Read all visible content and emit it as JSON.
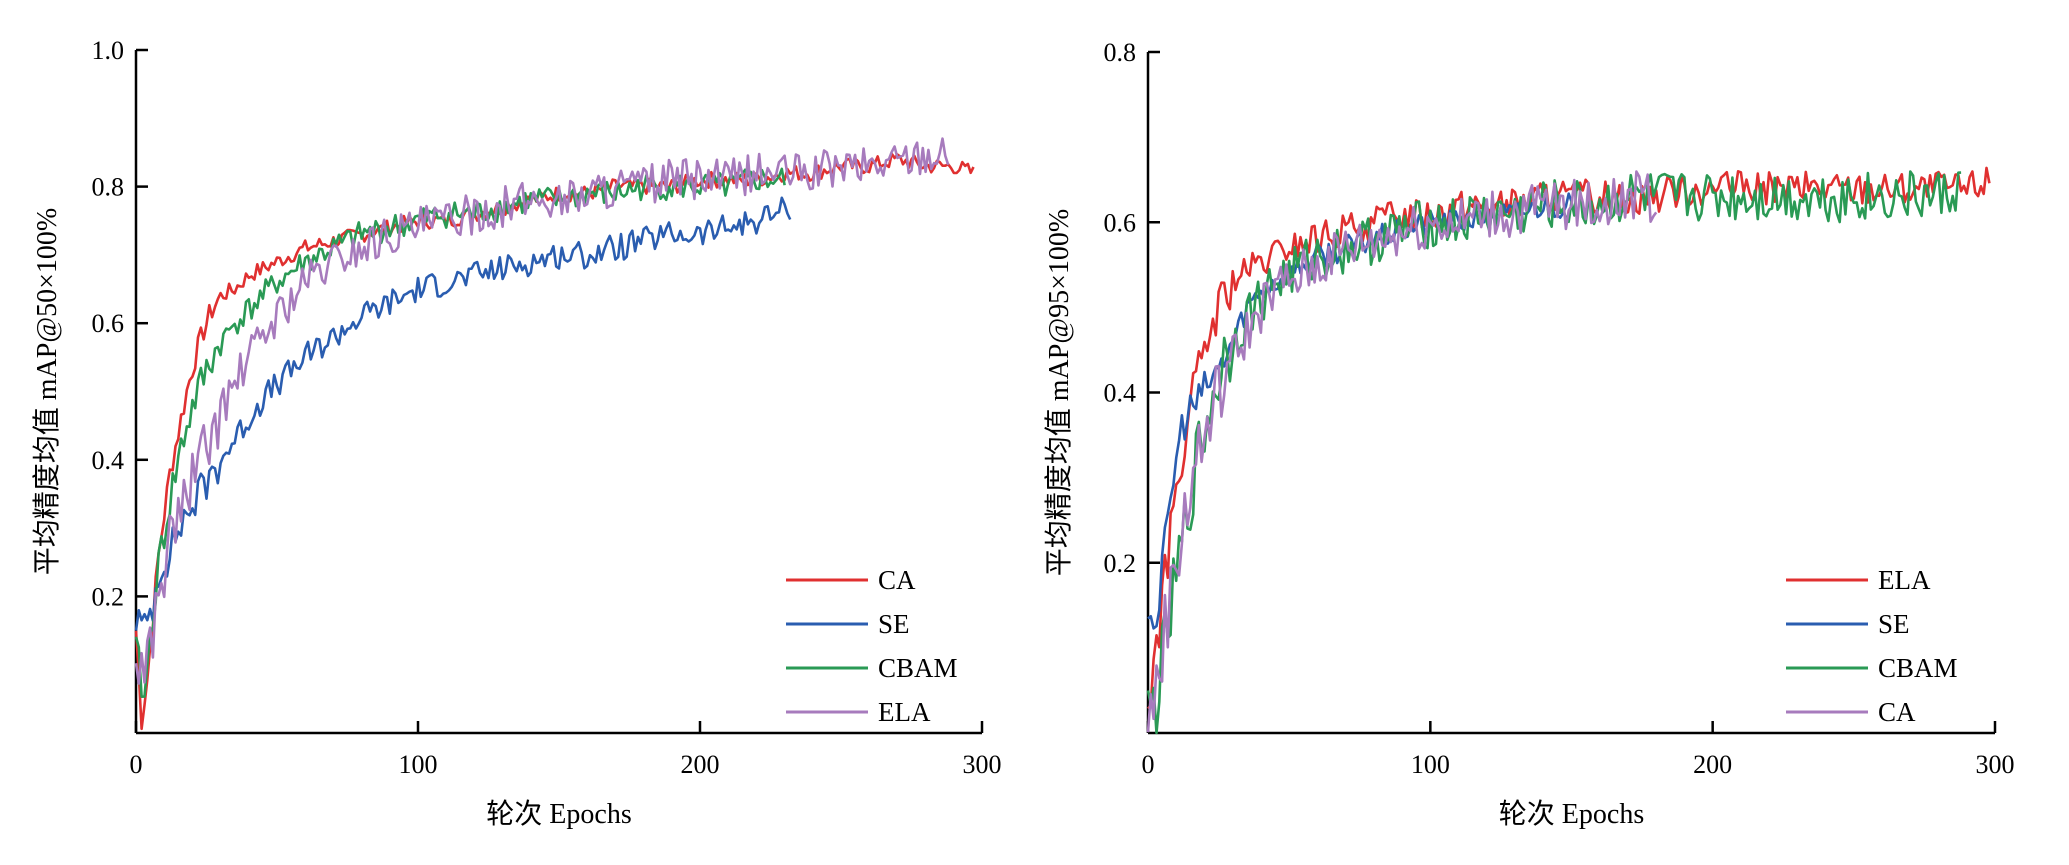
{
  "chart_data": [
    {
      "type": "line",
      "xlabel": "轮次 Epochs",
      "ylabel": "平均精度均值 mAP@50×100%",
      "xlim": [
        0,
        300
      ],
      "ylim": [
        0,
        1.0
      ],
      "xticks": [
        "0",
        "100",
        "200",
        "300"
      ],
      "yticks": [
        "0.2",
        "0.4",
        "0.6",
        "0.8",
        "1.0"
      ],
      "xtick_values": [
        0,
        100,
        200,
        300
      ],
      "ytick_values": [
        0.2,
        0.4,
        0.6,
        0.8,
        1.0
      ],
      "grid": false,
      "legend_position": "bottom-right",
      "series": [
        {
          "name": "CA",
          "color": "#e03030",
          "x": [
            0,
            2,
            4,
            6,
            8,
            10,
            12,
            15,
            18,
            21,
            24,
            27,
            30,
            35,
            40,
            45,
            50,
            60,
            70,
            80,
            90,
            100,
            110,
            120,
            130,
            140,
            150,
            160,
            170,
            180,
            190,
            200,
            210,
            220,
            230,
            240,
            250,
            260,
            270,
            280,
            290,
            297
          ],
          "y": [
            0.15,
            0.02,
            0.08,
            0.17,
            0.26,
            0.32,
            0.38,
            0.44,
            0.5,
            0.55,
            0.59,
            0.62,
            0.64,
            0.65,
            0.67,
            0.68,
            0.69,
            0.71,
            0.72,
            0.73,
            0.74,
            0.75,
            0.75,
            0.76,
            0.77,
            0.78,
            0.79,
            0.79,
            0.8,
            0.8,
            0.8,
            0.81,
            0.81,
            0.81,
            0.82,
            0.82,
            0.83,
            0.83,
            0.84,
            0.83,
            0.83,
            0.82
          ]
        },
        {
          "name": "SE",
          "color": "#2a5db0",
          "x": [
            0,
            3,
            6,
            9,
            12,
            15,
            18,
            21,
            24,
            27,
            30,
            35,
            40,
            45,
            50,
            55,
            60,
            70,
            80,
            90,
            100,
            110,
            120,
            130,
            140,
            150,
            160,
            170,
            180,
            190,
            200,
            210,
            220,
            232
          ],
          "y": [
            0.17,
            0.15,
            0.19,
            0.25,
            0.26,
            0.3,
            0.32,
            0.34,
            0.36,
            0.38,
            0.4,
            0.43,
            0.46,
            0.49,
            0.51,
            0.53,
            0.55,
            0.58,
            0.61,
            0.63,
            0.65,
            0.66,
            0.67,
            0.68,
            0.69,
            0.7,
            0.7,
            0.71,
            0.72,
            0.73,
            0.73,
            0.74,
            0.75,
            0.77
          ]
        },
        {
          "name": "CBAM",
          "color": "#2a9a55",
          "x": [
            0,
            3,
            6,
            9,
            12,
            15,
            18,
            21,
            24,
            27,
            30,
            35,
            40,
            45,
            50,
            60,
            70,
            80,
            90,
            100,
            110,
            120,
            130,
            140,
            150,
            160,
            170,
            180,
            190,
            200,
            210,
            220,
            230
          ],
          "y": [
            0.12,
            0.05,
            0.18,
            0.27,
            0.34,
            0.4,
            0.45,
            0.49,
            0.52,
            0.55,
            0.57,
            0.6,
            0.62,
            0.64,
            0.66,
            0.69,
            0.71,
            0.73,
            0.74,
            0.75,
            0.76,
            0.76,
            0.77,
            0.78,
            0.78,
            0.79,
            0.79,
            0.8,
            0.8,
            0.8,
            0.8,
            0.81,
            0.81
          ]
        },
        {
          "name": "ELA",
          "color": "#a77bbd",
          "x": [
            0,
            3,
            6,
            9,
            12,
            15,
            18,
            21,
            24,
            27,
            30,
            35,
            40,
            45,
            50,
            60,
            70,
            80,
            90,
            100,
            110,
            120,
            130,
            140,
            150,
            160,
            170,
            180,
            190,
            200,
            210,
            220,
            230,
            240,
            250,
            260,
            270,
            280,
            288
          ],
          "y": [
            0.1,
            0.1,
            0.15,
            0.22,
            0.28,
            0.32,
            0.35,
            0.38,
            0.41,
            0.44,
            0.47,
            0.51,
            0.55,
            0.58,
            0.61,
            0.66,
            0.69,
            0.71,
            0.73,
            0.74,
            0.75,
            0.76,
            0.77,
            0.78,
            0.78,
            0.79,
            0.8,
            0.8,
            0.81,
            0.81,
            0.81,
            0.82,
            0.82,
            0.82,
            0.83,
            0.83,
            0.84,
            0.85,
            0.85
          ]
        }
      ]
    },
    {
      "type": "line",
      "xlabel": "轮次 Epochs",
      "ylabel": "平均精度均值 mAP@95×100%",
      "xlim": [
        0,
        300
      ],
      "ylim": [
        0,
        0.8
      ],
      "xticks": [
        "0",
        "100",
        "200",
        "300"
      ],
      "yticks": [
        "0.2",
        "0.4",
        "0.6",
        "0.8"
      ],
      "xtick_values": [
        0,
        100,
        200,
        300
      ],
      "ytick_values": [
        0.2,
        0.4,
        0.6,
        0.8
      ],
      "grid": false,
      "legend_position": "bottom-right",
      "series": [
        {
          "name": "ELA",
          "color": "#e03030",
          "x": [
            0,
            3,
            6,
            9,
            12,
            15,
            18,
            21,
            24,
            27,
            30,
            35,
            40,
            45,
            50,
            60,
            70,
            80,
            90,
            100,
            110,
            120,
            130,
            140,
            150,
            160,
            170,
            180,
            190,
            200,
            210,
            220,
            230,
            240,
            250,
            260,
            270,
            280,
            290,
            298
          ],
          "y": [
            0.03,
            0.1,
            0.18,
            0.26,
            0.33,
            0.38,
            0.42,
            0.46,
            0.49,
            0.51,
            0.53,
            0.54,
            0.55,
            0.56,
            0.57,
            0.58,
            0.59,
            0.6,
            0.61,
            0.61,
            0.62,
            0.62,
            0.62,
            0.63,
            0.63,
            0.63,
            0.63,
            0.63,
            0.64,
            0.64,
            0.64,
            0.64,
            0.64,
            0.64,
            0.64,
            0.64,
            0.64,
            0.64,
            0.64,
            0.65
          ]
        },
        {
          "name": "SE",
          "color": "#2a5db0",
          "x": [
            0,
            3,
            6,
            9,
            12,
            15,
            18,
            21,
            24,
            27,
            30,
            35,
            40,
            45,
            50,
            55,
            60,
            70,
            80,
            90,
            100,
            110,
            120,
            130,
            140,
            150
          ],
          "y": [
            0.15,
            0.13,
            0.22,
            0.3,
            0.36,
            0.38,
            0.39,
            0.41,
            0.42,
            0.44,
            0.46,
            0.5,
            0.52,
            0.53,
            0.54,
            0.55,
            0.56,
            0.57,
            0.58,
            0.59,
            0.6,
            0.6,
            0.61,
            0.61,
            0.62,
            0.62
          ]
        },
        {
          "name": "CBAM",
          "color": "#2a9a55",
          "x": [
            0,
            3,
            6,
            9,
            12,
            15,
            18,
            21,
            24,
            27,
            30,
            35,
            40,
            45,
            50,
            60,
            70,
            80,
            90,
            100,
            110,
            120,
            130,
            140,
            150,
            160,
            170,
            180,
            190,
            200,
            210,
            220,
            230,
            240,
            250,
            260,
            270,
            280,
            288
          ],
          "y": [
            0.02,
            0.04,
            0.1,
            0.16,
            0.22,
            0.28,
            0.33,
            0.37,
            0.41,
            0.44,
            0.46,
            0.49,
            0.51,
            0.53,
            0.54,
            0.56,
            0.57,
            0.58,
            0.59,
            0.6,
            0.6,
            0.61,
            0.61,
            0.62,
            0.62,
            0.62,
            0.63,
            0.63,
            0.63,
            0.63,
            0.63,
            0.63,
            0.63,
            0.63,
            0.63,
            0.63,
            0.63,
            0.63,
            0.64
          ]
        },
        {
          "name": "CA",
          "color": "#a77bbd",
          "x": [
            0,
            3,
            6,
            9,
            12,
            15,
            18,
            21,
            24,
            27,
            30,
            35,
            40,
            45,
            50,
            60,
            70,
            80,
            90,
            100,
            110,
            120,
            130,
            140,
            150,
            160,
            170,
            180
          ],
          "y": [
            0.0,
            0.06,
            0.12,
            0.18,
            0.24,
            0.29,
            0.33,
            0.36,
            0.39,
            0.42,
            0.44,
            0.47,
            0.5,
            0.52,
            0.53,
            0.55,
            0.57,
            0.58,
            0.59,
            0.6,
            0.6,
            0.61,
            0.61,
            0.62,
            0.62,
            0.62,
            0.63,
            0.63
          ]
        }
      ]
    }
  ]
}
